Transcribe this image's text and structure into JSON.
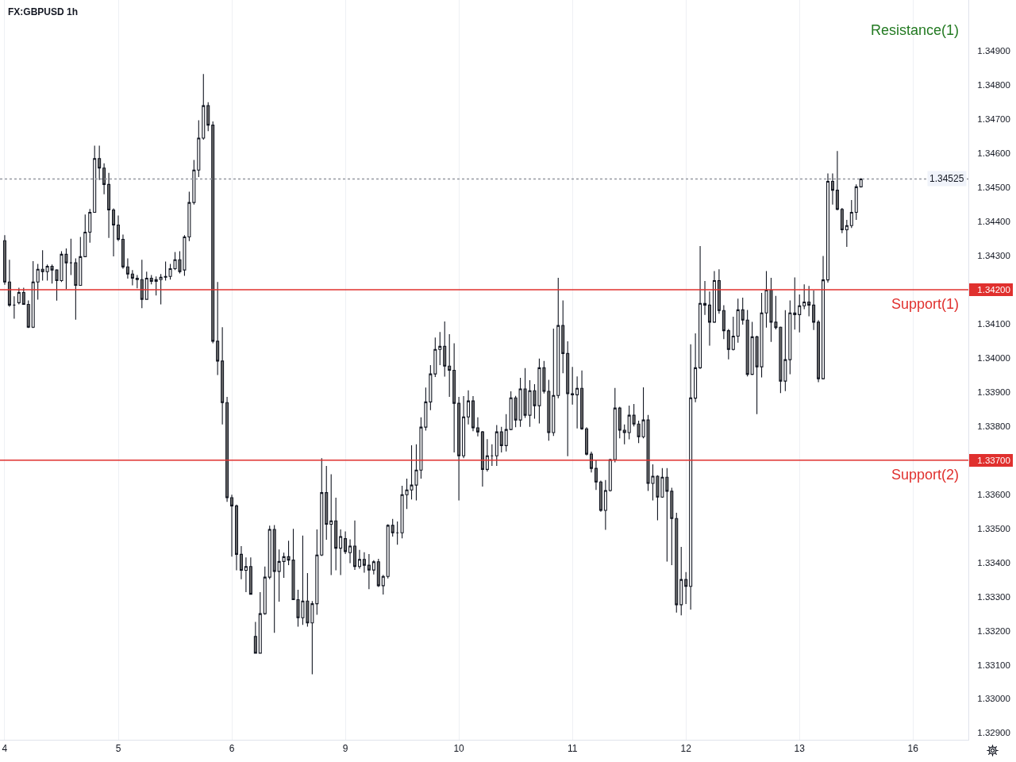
{
  "chart_data": {
    "type": "candlestick",
    "title": "FX:GBPUSD 1h",
    "categories": [
      "4",
      null,
      null,
      null,
      null,
      null,
      null,
      null,
      null,
      null,
      null,
      null,
      null,
      null,
      null,
      null,
      null,
      null,
      null,
      null,
      null,
      null,
      null,
      null,
      "5",
      null,
      null,
      null,
      null,
      null,
      null,
      null,
      null,
      null,
      null,
      null,
      null,
      null,
      null,
      null,
      null,
      null,
      null,
      null,
      null,
      null,
      null,
      null,
      "6",
      null,
      null,
      null,
      null,
      null,
      null,
      null,
      null,
      null,
      null,
      null,
      null,
      null,
      null,
      null,
      null,
      null,
      null,
      null,
      null,
      null,
      null,
      null,
      "9",
      null,
      null,
      null,
      null,
      null,
      null,
      null,
      null,
      null,
      null,
      null,
      null,
      null,
      null,
      null,
      null,
      null,
      null,
      null,
      null,
      null,
      null,
      null,
      "10",
      null,
      null,
      null,
      null,
      null,
      null,
      null,
      null,
      null,
      null,
      null,
      null,
      null,
      null,
      null,
      null,
      null,
      null,
      null,
      null,
      null,
      null,
      null,
      "11",
      null,
      null,
      null,
      null,
      null,
      null,
      null,
      null,
      null,
      null,
      null,
      null,
      null,
      null,
      null,
      null,
      null,
      null,
      null,
      null,
      null,
      null,
      null,
      "12",
      null,
      null,
      null,
      null,
      null,
      null,
      null,
      null,
      null,
      null,
      null,
      null,
      null,
      null,
      null,
      null,
      null,
      null,
      null,
      null,
      null,
      null,
      null,
      "13",
      null,
      null,
      null,
      null,
      null,
      null,
      null,
      null,
      null,
      null,
      null,
      null,
      null,
      null,
      null,
      null,
      null,
      null,
      null,
      null,
      null,
      null,
      null,
      "16",
      null,
      null,
      null,
      null,
      null,
      null,
      null,
      null,
      null,
      null,
      null
    ],
    "ohlc": [
      [
        1.34344,
        1.3436,
        1.34215,
        1.34223
      ],
      [
        1.34223,
        1.34288,
        1.3415,
        1.34155
      ],
      [
        1.34155,
        1.34181,
        1.34115,
        1.34155
      ],
      [
        1.34162,
        1.34206,
        1.34157,
        1.34192
      ],
      [
        1.34192,
        1.34206,
        1.34157,
        1.34157
      ],
      [
        1.34157,
        1.34169,
        1.34088,
        1.3409
      ],
      [
        1.3409,
        1.34284,
        1.34088,
        1.34223
      ],
      [
        1.34223,
        1.34276,
        1.34171,
        1.3426
      ],
      [
        1.3426,
        1.34316,
        1.34227,
        1.34253
      ],
      [
        1.34253,
        1.34274,
        1.34227,
        1.34269
      ],
      [
        1.34269,
        1.34274,
        1.34218,
        1.34258
      ],
      [
        1.34258,
        1.3426,
        1.34168,
        1.34227
      ],
      [
        1.34227,
        1.34313,
        1.34223,
        1.34304
      ],
      [
        1.34304,
        1.34321,
        1.34202,
        1.34279
      ],
      [
        1.34279,
        1.3435,
        1.34243,
        1.34279
      ],
      [
        1.34279,
        1.34292,
        1.34112,
        1.34213
      ],
      [
        1.34213,
        1.34355,
        1.34213,
        1.34297
      ],
      [
        1.34297,
        1.34421,
        1.34297,
        1.34369
      ],
      [
        1.34369,
        1.34437,
        1.34338,
        1.34427
      ],
      [
        1.34427,
        1.34623,
        1.34427,
        1.34585
      ],
      [
        1.34585,
        1.34623,
        1.34522,
        1.34557
      ],
      [
        1.34557,
        1.34571,
        1.3448,
        1.34509
      ],
      [
        1.34509,
        1.34543,
        1.34352,
        1.34434
      ],
      [
        1.34434,
        1.34439,
        1.34298,
        1.3439
      ],
      [
        1.3439,
        1.34418,
        1.34343,
        1.34348
      ],
      [
        1.34348,
        1.34362,
        1.34262,
        1.34267
      ],
      [
        1.34267,
        1.34292,
        1.34233,
        1.34246
      ],
      [
        1.34246,
        1.34258,
        1.34213,
        1.34234
      ],
      [
        1.34234,
        1.34243,
        1.34204,
        1.3423
      ],
      [
        1.3423,
        1.34288,
        1.34146,
        1.34172
      ],
      [
        1.34172,
        1.34253,
        1.34172,
        1.34234
      ],
      [
        1.34234,
        1.34243,
        1.34216,
        1.34225
      ],
      [
        1.34225,
        1.34239,
        1.34183,
        1.3423
      ],
      [
        1.3423,
        1.34246,
        1.34157,
        1.34237
      ],
      [
        1.34239,
        1.34283,
        1.34227,
        1.34237
      ],
      [
        1.34239,
        1.34276,
        1.3423,
        1.34262
      ],
      [
        1.34262,
        1.34311,
        1.34258,
        1.34288
      ],
      [
        1.34288,
        1.34313,
        1.34248,
        1.34253
      ],
      [
        1.34258,
        1.3436,
        1.34241,
        1.34355
      ],
      [
        1.34355,
        1.34488,
        1.34343,
        1.34456
      ],
      [
        1.34456,
        1.34581,
        1.3445,
        1.34551
      ],
      [
        1.34551,
        1.34697,
        1.34531,
        1.34645
      ],
      [
        1.34645,
        1.34833,
        1.3464,
        1.3474
      ],
      [
        1.3474,
        1.3475,
        1.34665,
        1.34683
      ],
      [
        1.34683,
        1.34694,
        1.34043,
        1.34049
      ],
      [
        1.34049,
        1.34223,
        1.3395,
        1.33991
      ],
      [
        1.33991,
        1.3409,
        1.33805,
        1.33869
      ],
      [
        1.33869,
        1.33886,
        1.33578,
        1.3359
      ],
      [
        1.3359,
        1.33599,
        1.33417,
        1.33566
      ],
      [
        1.33566,
        1.3357,
        1.33377,
        1.33424
      ],
      [
        1.33424,
        1.33448,
        1.33351,
        1.33377
      ],
      [
        1.33377,
        1.33415,
        1.33313,
        1.33388
      ],
      [
        1.33388,
        1.33415,
        1.33307,
        1.33307
      ],
      [
        1.33183,
        1.33226,
        1.33134,
        1.33134
      ],
      [
        1.33134,
        1.33313,
        1.33134,
        1.3325
      ],
      [
        1.3325,
        1.33388,
        1.33247,
        1.33357
      ],
      [
        1.33357,
        1.33508,
        1.33351,
        1.33497
      ],
      [
        1.33497,
        1.3351,
        1.33194,
        1.33374
      ],
      [
        1.33374,
        1.33438,
        1.33285,
        1.33403
      ],
      [
        1.33403,
        1.33429,
        1.33355,
        1.33417
      ],
      [
        1.33417,
        1.33464,
        1.33392,
        1.33407
      ],
      [
        1.33407,
        1.33499,
        1.33291,
        1.33291
      ],
      [
        1.33291,
        1.3332,
        1.33212,
        1.33238
      ],
      [
        1.33238,
        1.33479,
        1.33217,
        1.33287
      ],
      [
        1.33287,
        1.33369,
        1.33212,
        1.33223
      ],
      [
        1.33223,
        1.33287,
        1.33072,
        1.33279
      ],
      [
        1.33279,
        1.33497,
        1.33247,
        1.33422
      ],
      [
        1.33422,
        1.33706,
        1.33419,
        1.33605
      ],
      [
        1.33605,
        1.33683,
        1.33467,
        1.33512
      ],
      [
        1.33512,
        1.33659,
        1.33363,
        1.33522
      ],
      [
        1.33522,
        1.3359,
        1.33377,
        1.33442
      ],
      [
        1.33442,
        1.33497,
        1.33363,
        1.33476
      ],
      [
        1.3347,
        1.33491,
        1.33425,
        1.33432
      ],
      [
        1.33429,
        1.33468,
        1.33398,
        1.33448
      ],
      [
        1.33448,
        1.33523,
        1.33378,
        1.33388
      ],
      [
        1.33388,
        1.33437,
        1.33382,
        1.33409
      ],
      [
        1.33409,
        1.3343,
        1.3337,
        1.33392
      ],
      [
        1.33392,
        1.33425,
        1.33322,
        1.33378
      ],
      [
        1.33378,
        1.33407,
        1.33365,
        1.33402
      ],
      [
        1.33402,
        1.33411,
        1.33328,
        1.33332
      ],
      [
        1.33332,
        1.33364,
        1.33306,
        1.33359
      ],
      [
        1.33359,
        1.33512,
        1.33353,
        1.33509
      ],
      [
        1.33509,
        1.33528,
        1.33476,
        1.33487
      ],
      [
        1.33487,
        1.3352,
        1.33452,
        1.33487
      ],
      [
        1.33487,
        1.33625,
        1.33471,
        1.33599
      ],
      [
        1.33599,
        1.33646,
        1.33557,
        1.33613
      ],
      [
        1.33613,
        1.33744,
        1.33585,
        1.33627
      ],
      [
        1.33627,
        1.33747,
        1.33582,
        1.33671
      ],
      [
        1.33671,
        1.33826,
        1.33646,
        1.33797
      ],
      [
        1.33797,
        1.33913,
        1.33787,
        1.33871
      ],
      [
        1.33871,
        1.33979,
        1.33847,
        1.33953
      ],
      [
        1.33953,
        1.3406,
        1.33944,
        1.34025
      ],
      [
        1.34025,
        1.34076,
        1.33979,
        1.34034
      ],
      [
        1.34034,
        1.34107,
        1.33945,
        1.33976
      ],
      [
        1.33976,
        1.3407,
        1.33886,
        1.33964
      ],
      [
        1.33964,
        1.34043,
        1.33723,
        1.33867
      ],
      [
        1.33867,
        1.33886,
        1.33582,
        1.33713
      ],
      [
        1.33713,
        1.33888,
        1.33706,
        1.33827
      ],
      [
        1.33827,
        1.33905,
        1.33805,
        1.33874
      ],
      [
        1.33874,
        1.33888,
        1.33785,
        1.33795
      ],
      [
        1.33795,
        1.33826,
        1.3377,
        1.33783
      ],
      [
        1.33783,
        1.33786,
        1.33623,
        1.33673
      ],
      [
        1.33673,
        1.33762,
        1.33667,
        1.33713
      ],
      [
        1.33713,
        1.33747,
        1.33683,
        1.33713
      ],
      [
        1.33713,
        1.33803,
        1.33683,
        1.33783
      ],
      [
        1.33783,
        1.33798,
        1.33723,
        1.33743
      ],
      [
        1.33743,
        1.33835,
        1.33726,
        1.3379
      ],
      [
        1.3379,
        1.33902,
        1.33788,
        1.33883
      ],
      [
        1.33883,
        1.33889,
        1.33797,
        1.33818
      ],
      [
        1.33818,
        1.33942,
        1.33798,
        1.33909
      ],
      [
        1.33909,
        1.3397,
        1.33824,
        1.33832
      ],
      [
        1.33832,
        1.33935,
        1.33798,
        1.33904
      ],
      [
        1.33904,
        1.33923,
        1.33822,
        1.3386
      ],
      [
        1.3386,
        1.33998,
        1.33808,
        1.33971
      ],
      [
        1.33971,
        1.33991,
        1.33896,
        1.33902
      ],
      [
        1.33902,
        1.33936,
        1.33757,
        1.33781
      ],
      [
        1.33781,
        1.34086,
        1.33771,
        1.3389
      ],
      [
        1.3389,
        1.34235,
        1.33882,
        1.34095
      ],
      [
        1.34095,
        1.34169,
        1.33955,
        1.34013
      ],
      [
        1.34013,
        1.34049,
        1.33712,
        1.33895
      ],
      [
        1.33895,
        1.33974,
        1.33863,
        1.33892
      ],
      [
        1.33892,
        1.33946,
        1.33793,
        1.33911
      ],
      [
        1.33911,
        1.33963,
        1.33789,
        1.33792
      ],
      [
        1.33792,
        1.33797,
        1.33714,
        1.33718
      ],
      [
        1.33718,
        1.33725,
        1.33664,
        1.33676
      ],
      [
        1.33676,
        1.337,
        1.33613,
        1.33636
      ],
      [
        1.33636,
        1.3364,
        1.33549,
        1.33553
      ],
      [
        1.33553,
        1.33642,
        1.33496,
        1.33611
      ],
      [
        1.33611,
        1.33704,
        1.33608,
        1.33702
      ],
      [
        1.33702,
        1.33912,
        1.33694,
        1.33853
      ],
      [
        1.33853,
        1.33857,
        1.33764,
        1.33788
      ],
      [
        1.33788,
        1.33805,
        1.33747,
        1.33781
      ],
      [
        1.33781,
        1.3386,
        1.33761,
        1.33832
      ],
      [
        1.33832,
        1.33865,
        1.33799,
        1.33806
      ],
      [
        1.33806,
        1.33816,
        1.3375,
        1.33769
      ],
      [
        1.33769,
        1.33914,
        1.33764,
        1.33818
      ],
      [
        1.33818,
        1.33833,
        1.3361,
        1.33632
      ],
      [
        1.33632,
        1.33688,
        1.33582,
        1.33653
      ],
      [
        1.33653,
        1.33656,
        1.33524,
        1.33592
      ],
      [
        1.33592,
        1.33677,
        1.3359,
        1.3365
      ],
      [
        1.3365,
        1.33677,
        1.33403,
        1.33609
      ],
      [
        1.33609,
        1.33619,
        1.33392,
        1.33529
      ],
      [
        1.33529,
        1.33546,
        1.33253,
        1.33276
      ],
      [
        1.33276,
        1.33446,
        1.33245,
        1.3335
      ],
      [
        1.3335,
        1.33372,
        1.33278,
        1.3333
      ],
      [
        1.3333,
        1.3404,
        1.33262,
        1.33883
      ],
      [
        1.33882,
        1.34072,
        1.3387,
        1.33971
      ],
      [
        1.33971,
        1.34328,
        1.33968,
        1.3416
      ],
      [
        1.3416,
        1.34226,
        1.34126,
        1.34155
      ],
      [
        1.34155,
        1.34195,
        1.34036,
        1.34105
      ],
      [
        1.34105,
        1.34255,
        1.34103,
        1.34227
      ],
      [
        1.34227,
        1.3426,
        1.3413,
        1.34139
      ],
      [
        1.34139,
        1.34155,
        1.34055,
        1.3408
      ],
      [
        1.3408,
        1.34085,
        1.33996,
        1.34025
      ],
      [
        1.34025,
        1.34121,
        1.34022,
        1.34064
      ],
      [
        1.34064,
        1.34174,
        1.34045,
        1.34141
      ],
      [
        1.34141,
        1.34177,
        1.34098,
        1.34111
      ],
      [
        1.34111,
        1.34141,
        1.33946,
        1.33952
      ],
      [
        1.33952,
        1.34106,
        1.3395,
        1.34062
      ],
      [
        1.34062,
        1.34065,
        1.33835,
        1.33974
      ],
      [
        1.33974,
        1.34191,
        1.33943,
        1.34132
      ],
      [
        1.34132,
        1.34255,
        1.34089,
        1.34199
      ],
      [
        1.34199,
        1.34235,
        1.34047,
        1.34105
      ],
      [
        1.34105,
        1.34182,
        1.34084,
        1.34089
      ],
      [
        1.3409,
        1.34092,
        1.33897,
        1.33932
      ],
      [
        1.33932,
        1.3414,
        1.33903,
        1.33995
      ],
      [
        1.33995,
        1.34169,
        1.33952,
        1.34132
      ],
      [
        1.34132,
        1.34236,
        1.34083,
        1.34127
      ],
      [
        1.34127,
        1.34186,
        1.34075,
        1.34153
      ],
      [
        1.34153,
        1.34216,
        1.34143,
        1.34164
      ],
      [
        1.34164,
        1.34211,
        1.34122,
        1.34155
      ],
      [
        1.34155,
        1.34198,
        1.34082,
        1.34105
      ],
      [
        1.34105,
        1.34111,
        1.33929,
        1.33939
      ],
      [
        1.33939,
        1.34299,
        1.33937,
        1.34229
      ],
      [
        1.34229,
        1.34541,
        1.34221,
        1.34518
      ],
      [
        1.34518,
        1.34541,
        1.3445,
        1.34492
      ],
      [
        1.34492,
        1.34607,
        1.34433,
        1.34436
      ],
      [
        1.34436,
        1.3444,
        1.34366,
        1.34376
      ],
      [
        1.34376,
        1.34405,
        1.34326,
        1.34388
      ],
      [
        1.34388,
        1.34463,
        1.34381,
        1.34427
      ],
      [
        1.34427,
        1.34509,
        1.34405,
        1.34502
      ],
      [
        1.34502,
        1.34527,
        1.345,
        1.34525
      ],
      null,
      null,
      null,
      null,
      null,
      null,
      null,
      null,
      null,
      null,
      null,
      null,
      null,
      null,
      null,
      null,
      null,
      null,
      null,
      null,
      null,
      null
    ],
    "ylim": [
      1.3288,
      1.3505
    ],
    "yticks": [
      {
        "value": 1.329,
        "label": "1.32900"
      },
      {
        "value": 1.33,
        "label": "1.33000"
      },
      {
        "value": 1.331,
        "label": "1.33100"
      },
      {
        "value": 1.332,
        "label": "1.33200"
      },
      {
        "value": 1.333,
        "label": "1.33300"
      },
      {
        "value": 1.334,
        "label": "1.33400"
      },
      {
        "value": 1.335,
        "label": "1.33500"
      },
      {
        "value": 1.336,
        "label": "1.33600"
      },
      {
        "value": 1.337,
        "label": "1.33700"
      },
      {
        "value": 1.338,
        "label": "1.33800"
      },
      {
        "value": 1.339,
        "label": "1.33900"
      },
      {
        "value": 1.34,
        "label": "1.34000"
      },
      {
        "value": 1.341,
        "label": "1.34100"
      },
      {
        "value": 1.342,
        "label": "1.34200"
      },
      {
        "value": 1.343,
        "label": "1.34300"
      },
      {
        "value": 1.344,
        "label": "1.34400"
      },
      {
        "value": 1.345,
        "label": "1.34500"
      },
      {
        "value": 1.346,
        "label": "1.34600"
      },
      {
        "value": 1.347,
        "label": "1.34700"
      },
      {
        "value": 1.348,
        "label": "1.34800"
      },
      {
        "value": 1.349,
        "label": "1.34900"
      }
    ],
    "grid": true,
    "ref_lines": [
      {
        "axis": "y",
        "value": 1.342,
        "label": "Support(1)",
        "color": "#e0302e"
      },
      {
        "axis": "y",
        "value": 1.337,
        "label": "Support(2)",
        "color": "#e0302e"
      },
      {
        "axis": "y",
        "value": 1.34525,
        "label": "1.34525",
        "color": "#9598a1",
        "line_style": "dotted"
      }
    ],
    "annotations": [
      "Resistance(1)"
    ]
  }
}
